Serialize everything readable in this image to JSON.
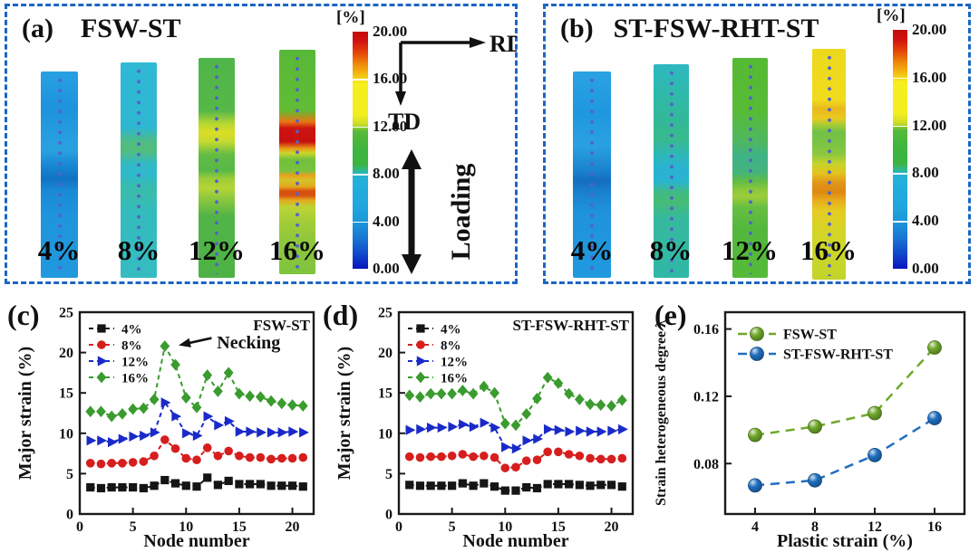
{
  "panels": {
    "a": {
      "label": "(a)",
      "title": "FSW-ST",
      "direction_labels": {
        "rd": "RD",
        "td": "TD"
      },
      "loading_label": "Loading",
      "dot_color": "#5562c8",
      "colorbar": {
        "unit": "[%]",
        "ticks": [
          "20.00",
          "16.00",
          "12.00",
          "8.00",
          "4.00",
          "0.00"
        ],
        "gradient": [
          "#c30c0c 0%",
          "#d31110 4%",
          "#e44708 9%",
          "#ef8d0b 14%",
          "#f3bc11 18%",
          "#f6ef1e 22%",
          "#f2ee20 35%",
          "#cede26 39%",
          "#56ba3a 42%",
          "#3db43e 50%",
          "#3bb441 56%",
          "#2eb88c 58.5%",
          "#27b3cd 60%",
          "#24afdc 63%",
          "#20a5de 74%",
          "#1d95da 81%",
          "#1976d2 87%",
          "#0f46cc 94%",
          "#0a14be 100%"
        ]
      },
      "specimens": [
        {
          "label": "4%",
          "gradient": [
            "#27a0e2 0%",
            "#1d93dc 18%",
            "#2aa2e0 38%",
            "#1886d2 46%",
            "#1172c2 52%",
            "#1a8bd6 58%",
            "#1f95dc 72%",
            "#2099de 100%"
          ]
        },
        {
          "label": "8%",
          "gradient": [
            "#2fb9d4 0%",
            "#2db7d2 30%",
            "#4fbc82 37%",
            "#52bd7c 41%",
            "#31b9c4 47%",
            "#2fb9cc 52%",
            "#36bcb0 57%",
            "#3bbcac 61%",
            "#33bbbe 70%",
            "#34bcc0 100%"
          ]
        },
        {
          "label": "12%",
          "gradient": [
            "#50b54a 0%",
            "#55b848 24%",
            "#b9d732 30%",
            "#d9de24 34%",
            "#c5da2e 38%",
            "#63bc44 44%",
            "#57b846 51%",
            "#9dcc3a 55%",
            "#b5d436 59%",
            "#8dc83e 64%",
            "#51b447 72%",
            "#4db246 100%"
          ]
        },
        {
          "label": "16%",
          "gradient": [
            "#58b838 0%",
            "#60bc34 27%",
            "#e87814 32%",
            "#cc1310 35%",
            "#c81210 41%",
            "#e89c16 44%",
            "#ccd62a 46%",
            "#70c03c 49%",
            "#7ac23e 54%",
            "#eaa01e 56%",
            "#d2c428 58%",
            "#e2a81c 61%",
            "#d84e10 63%",
            "#d85410 65%",
            "#e4a81e 67%",
            "#bcd434 70%",
            "#a2cc38 77%",
            "#8ec63c 86%",
            "#7ec43e 100%"
          ]
        }
      ]
    },
    "b": {
      "label": "(b)",
      "title": "ST-FSW-RHT-ST",
      "dot_color": "#5562c8",
      "colorbar": {
        "unit": "[%]",
        "ticks": [
          "20.00",
          "16.00",
          "12.00",
          "8.00",
          "4.00",
          "0.00"
        ],
        "gradient": [
          "#c30c0c 0%",
          "#d31110 4%",
          "#e44708 9%",
          "#ef8d0b 14%",
          "#f3bc11 18%",
          "#f6ef1e 22%",
          "#f2ee20 35%",
          "#cede26 39%",
          "#56ba3a 42%",
          "#3db43e 50%",
          "#3bb441 56%",
          "#2eb88c 58.5%",
          "#27b3cd 60%",
          "#24afdc 63%",
          "#20a5de 74%",
          "#1d95da 81%",
          "#1976d2 87%",
          "#0f46cc 94%",
          "#0a14be 100%"
        ]
      },
      "specimens": [
        {
          "label": "4%",
          "gradient": [
            "#2aa2e2 0%",
            "#1f97de 20%",
            "#29a1e0 36%",
            "#1a82ce 48%",
            "#156dbe 53%",
            "#1a80cc 58%",
            "#1f93da 68%",
            "#2099de 100%"
          ]
        },
        {
          "label": "8%",
          "gradient": [
            "#2eb8c0 0%",
            "#2fb9a8 15%",
            "#33b996 28%",
            "#38ba8e 35%",
            "#2cb6c0 44%",
            "#29b2d4 50%",
            "#2ab4cc 55%",
            "#40ba84 60%",
            "#46bc74 64%",
            "#35b99e 72%",
            "#30b8a6 100%"
          ]
        },
        {
          "label": "12%",
          "gradient": [
            "#55ba34 0%",
            "#57bb36 24%",
            "#4eb760 38%",
            "#3eb288 45%",
            "#44b47c 52%",
            "#60bc46 56%",
            "#8cc83c 60%",
            "#9ecc3a 63%",
            "#66be42 68%",
            "#52b83c 78%",
            "#55ba38 100%"
          ]
        },
        {
          "label": "16%",
          "gradient": [
            "#ecd91e 0%",
            "#f0dc1c 22%",
            "#e8b81e 26%",
            "#ecc91e 30%",
            "#a4cc34 33%",
            "#72c046 36%",
            "#7cc444 42%",
            "#90c83e 46%",
            "#c8d42a 50%",
            "#e4c21e 54%",
            "#e0961a 58%",
            "#dd8812 62%",
            "#e8ae1c 66%",
            "#e4cc22 70%",
            "#d6d426 78%",
            "#ccd628 88%",
            "#c2d42c 100%"
          ]
        }
      ]
    }
  },
  "chart_data": [
    {
      "id": "c",
      "type": "line",
      "panel_label": "(c)",
      "title": "FSW-ST",
      "xlabel": "Node number",
      "ylabel": "Major strain (%)",
      "xlim": [
        0,
        22
      ],
      "ylim": [
        0,
        25
      ],
      "xticks": [
        0,
        5,
        10,
        15,
        20
      ],
      "xtick_labels": [
        "0",
        "5",
        "10",
        "15",
        "20"
      ],
      "yticks": [
        0,
        5,
        10,
        15,
        20,
        25
      ],
      "ytick_labels": [
        "0",
        "5",
        "10",
        "15",
        "20",
        "25"
      ],
      "legend_position": "top-left",
      "line_style": "dashed",
      "x": [
        1,
        2,
        3,
        4,
        5,
        6,
        7,
        8,
        9,
        10,
        11,
        12,
        13,
        14,
        15,
        16,
        17,
        18,
        19,
        20,
        21
      ],
      "series": [
        {
          "name": "4%",
          "color": "#151515",
          "marker": "square",
          "values": [
            3.3,
            3.2,
            3.3,
            3.3,
            3.3,
            3.2,
            3.5,
            4.2,
            3.8,
            3.5,
            3.4,
            4.5,
            3.6,
            4.1,
            3.7,
            3.7,
            3.7,
            3.5,
            3.5,
            3.5,
            3.4
          ]
        },
        {
          "name": "8%",
          "color": "#d61e1e",
          "marker": "circle",
          "values": [
            6.3,
            6.2,
            6.3,
            6.3,
            6.4,
            6.5,
            7.2,
            9.2,
            8.1,
            6.9,
            6.7,
            8.2,
            7.2,
            7.8,
            7.2,
            7.0,
            7.0,
            6.8,
            6.9,
            6.9,
            7.0
          ]
        },
        {
          "name": "12%",
          "color": "#1a2ac8",
          "marker": "triangle-right",
          "values": [
            9.1,
            9.1,
            8.9,
            9.3,
            9.6,
            9.7,
            10.1,
            13.8,
            12.1,
            10.0,
            9.7,
            12.1,
            11.0,
            11.5,
            10.2,
            10.2,
            10.1,
            10.1,
            10.1,
            10.2,
            10.1
          ]
        },
        {
          "name": "16%",
          "color": "#3a9b2e",
          "marker": "diamond",
          "values": [
            12.7,
            12.7,
            12.1,
            12.4,
            13.0,
            13.1,
            14.2,
            20.8,
            18.5,
            14.4,
            13.2,
            17.2,
            15.2,
            17.5,
            14.9,
            14.6,
            14.5,
            14.0,
            13.7,
            13.5,
            13.4
          ]
        }
      ],
      "annotation": {
        "text": "Necking",
        "text_at": [
          12.9,
          20.5
        ],
        "arrow_from": [
          12.4,
          21.8
        ],
        "arrow_to": [
          9.3,
          20.9
        ]
      }
    },
    {
      "id": "d",
      "type": "line",
      "panel_label": "(d)",
      "title": "ST-FSW-RHT-ST",
      "xlabel": "Node number",
      "ylabel": "Major strain (%)",
      "xlim": [
        0,
        22
      ],
      "ylim": [
        0,
        25
      ],
      "xticks": [
        0,
        5,
        10,
        15,
        20
      ],
      "xtick_labels": [
        "0",
        "5",
        "10",
        "15",
        "20"
      ],
      "yticks": [
        0,
        5,
        10,
        15,
        20,
        25
      ],
      "ytick_labels": [
        "0",
        "5",
        "10",
        "15",
        "20",
        "25"
      ],
      "legend_position": "top-left",
      "line_style": "dashed",
      "x": [
        1,
        2,
        3,
        4,
        5,
        6,
        7,
        8,
        9,
        10,
        11,
        12,
        13,
        14,
        15,
        16,
        17,
        18,
        19,
        20,
        21
      ],
      "series": [
        {
          "name": "4%",
          "color": "#151515",
          "marker": "square",
          "values": [
            3.6,
            3.5,
            3.5,
            3.5,
            3.5,
            3.8,
            3.5,
            3.8,
            3.4,
            2.9,
            2.9,
            3.3,
            3.2,
            3.7,
            3.7,
            3.7,
            3.6,
            3.5,
            3.6,
            3.6,
            3.4
          ]
        },
        {
          "name": "8%",
          "color": "#d61e1e",
          "marker": "circle",
          "values": [
            7.1,
            7.0,
            7.1,
            7.1,
            7.2,
            7.4,
            7.1,
            7.2,
            7.0,
            5.7,
            5.8,
            6.6,
            6.7,
            7.7,
            7.7,
            7.4,
            7.2,
            6.9,
            6.8,
            6.8,
            6.9
          ]
        },
        {
          "name": "12%",
          "color": "#1a2ac8",
          "marker": "triangle-right",
          "values": [
            10.4,
            10.5,
            10.7,
            10.7,
            10.8,
            11.1,
            10.8,
            11.3,
            10.7,
            8.3,
            8.1,
            9.1,
            9.3,
            10.5,
            10.4,
            10.2,
            10.3,
            10.2,
            10.2,
            10.3,
            10.5
          ]
        },
        {
          "name": "16%",
          "color": "#3a9b2e",
          "marker": "diamond",
          "values": [
            14.7,
            14.5,
            14.9,
            14.9,
            14.9,
            15.3,
            14.9,
            15.8,
            15.0,
            11.2,
            11.0,
            12.4,
            14.3,
            16.9,
            16.2,
            14.9,
            14.2,
            13.6,
            13.5,
            13.4,
            14.1
          ]
        }
      ]
    },
    {
      "id": "e",
      "type": "line",
      "panel_label": "(e)",
      "xlabel": "Plastic strain (%)",
      "ylabel": "Strain heterogeneous degree λ",
      "xlim": [
        2,
        18
      ],
      "ylim": [
        0.05,
        0.17
      ],
      "xticks": [
        4,
        8,
        12,
        16
      ],
      "xtick_labels": [
        "4",
        "8",
        "12",
        "16"
      ],
      "yticks": [
        0.08,
        0.12,
        0.16
      ],
      "ytick_labels": [
        "0.08",
        "0.12",
        "0.16"
      ],
      "legend_position": "top-left",
      "line_style": "dashed",
      "x": [
        4,
        8,
        12,
        16
      ],
      "series": [
        {
          "name": "FSW-ST",
          "color": "#6fa82a",
          "marker": "ball",
          "values": [
            0.097,
            0.102,
            0.11,
            0.149
          ]
        },
        {
          "name": "ST-FSW-RHT-ST",
          "color": "#1f6fc0",
          "marker": "ball",
          "values": [
            0.067,
            0.07,
            0.085,
            0.107
          ]
        }
      ]
    }
  ]
}
